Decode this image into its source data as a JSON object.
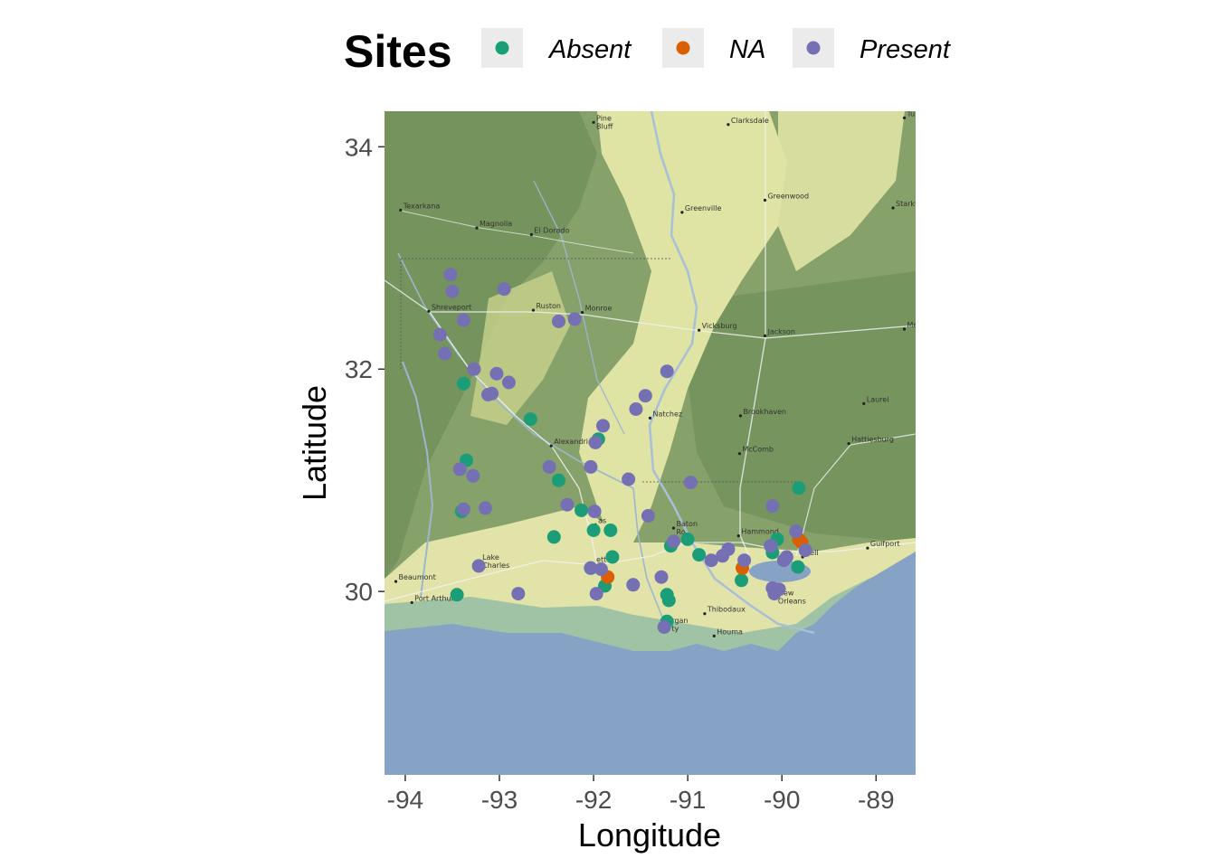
{
  "chart_data": {
    "type": "scatter",
    "xlabel": "Longitude",
    "ylabel": "Latitude",
    "xlim": [
      -94.22,
      -88.58
    ],
    "ylim": [
      28.35,
      34.32
    ],
    "x_ticks": [
      -94,
      -93,
      -92,
      -91,
      -90,
      -89
    ],
    "x_tick_labels": [
      "-94",
      "-93",
      "-92",
      "-91",
      "-90",
      "-89"
    ],
    "y_ticks": [
      30,
      32,
      34
    ],
    "y_tick_labels": [
      "30",
      "32",
      "34"
    ],
    "grid": false,
    "basemap": "terrain",
    "legend": {
      "title": "Sites",
      "position": "top",
      "items": [
        {
          "label": "Absent",
          "color": "#1b9e77"
        },
        {
          "label": "NA",
          "color": "#d95f02"
        },
        {
          "label": "Present",
          "color": "#7570b3"
        }
      ]
    },
    "series": [
      {
        "name": "Absent",
        "color": "#1b9e77",
        "points": [
          [
            -93.38,
            31.87
          ],
          [
            -92.67,
            31.55
          ],
          [
            -93.35,
            31.18
          ],
          [
            -93.4,
            30.72
          ],
          [
            -92.37,
            31.0
          ],
          [
            -92.13,
            30.73
          ],
          [
            -92.42,
            30.49
          ],
          [
            -92.0,
            30.55
          ],
          [
            -91.82,
            30.55
          ],
          [
            -91.8,
            30.31
          ],
          [
            -92.03,
            30.21
          ],
          [
            -91.88,
            30.05
          ],
          [
            -91.95,
            31.37
          ],
          [
            -93.45,
            29.97
          ],
          [
            -91.22,
            29.97
          ],
          [
            -91.2,
            29.92
          ],
          [
            -91.22,
            29.73
          ],
          [
            -91.18,
            30.41
          ],
          [
            -91.0,
            30.47
          ],
          [
            -90.88,
            30.33
          ],
          [
            -90.05,
            30.47
          ],
          [
            -90.1,
            30.35
          ],
          [
            -89.82,
            30.93
          ],
          [
            -89.83,
            30.22
          ],
          [
            -90.43,
            30.1
          ]
        ]
      },
      {
        "name": "NA",
        "color": "#d95f02",
        "points": [
          [
            -91.85,
            30.13
          ],
          [
            -90.42,
            30.21
          ],
          [
            -89.82,
            30.47
          ],
          [
            -89.79,
            30.44
          ]
        ]
      },
      {
        "name": "Present",
        "color": "#7570b3",
        "points": [
          [
            -93.52,
            32.85
          ],
          [
            -93.5,
            32.7
          ],
          [
            -92.95,
            32.72
          ],
          [
            -93.38,
            32.44
          ],
          [
            -92.37,
            32.43
          ],
          [
            -92.2,
            32.45
          ],
          [
            -93.63,
            32.31
          ],
          [
            -93.58,
            32.14
          ],
          [
            -93.27,
            32.0
          ],
          [
            -93.03,
            31.96
          ],
          [
            -92.9,
            31.88
          ],
          [
            -93.12,
            31.77
          ],
          [
            -93.08,
            31.78
          ],
          [
            -91.22,
            31.98
          ],
          [
            -91.45,
            31.76
          ],
          [
            -91.55,
            31.64
          ],
          [
            -91.9,
            31.49
          ],
          [
            -91.98,
            31.34
          ],
          [
            -92.47,
            31.12
          ],
          [
            -92.03,
            31.12
          ],
          [
            -93.42,
            31.1
          ],
          [
            -93.28,
            31.04
          ],
          [
            -91.63,
            31.01
          ],
          [
            -90.97,
            30.98
          ],
          [
            -93.38,
            30.74
          ],
          [
            -93.15,
            30.75
          ],
          [
            -92.28,
            30.78
          ],
          [
            -91.99,
            30.72
          ],
          [
            -91.42,
            30.68
          ],
          [
            -90.1,
            30.77
          ],
          [
            -91.15,
            30.45
          ],
          [
            -90.57,
            30.38
          ],
          [
            -90.63,
            30.32
          ],
          [
            -90.75,
            30.28
          ],
          [
            -90.4,
            30.28
          ],
          [
            -90.12,
            30.41
          ],
          [
            -89.95,
            30.31
          ],
          [
            -89.98,
            30.28
          ],
          [
            -89.85,
            30.54
          ],
          [
            -89.75,
            30.37
          ],
          [
            -93.22,
            30.23
          ],
          [
            -92.03,
            30.21
          ],
          [
            -91.92,
            30.2
          ],
          [
            -91.28,
            30.13
          ],
          [
            -91.58,
            30.06
          ],
          [
            -92.8,
            29.98
          ],
          [
            -91.97,
            29.98
          ],
          [
            -90.1,
            30.03
          ],
          [
            -90.05,
            30.02
          ],
          [
            -90.03,
            30.02
          ],
          [
            -90.08,
            29.98
          ],
          [
            -91.25,
            29.68
          ]
        ]
      }
    ]
  },
  "map_labels": [
    {
      "name": "Pine\nBluff",
      "lon": -92.0,
      "lat": 34.22
    },
    {
      "name": "Clarksdale",
      "lon": -90.57,
      "lat": 34.2
    },
    {
      "name": "Tupelo",
      "lon": -88.7,
      "lat": 34.26
    },
    {
      "name": "Texarkana",
      "lon": -94.05,
      "lat": 33.43
    },
    {
      "name": "Magnolia",
      "lon": -93.24,
      "lat": 33.27
    },
    {
      "name": "El Dorado",
      "lon": -92.66,
      "lat": 33.21
    },
    {
      "name": "Greenville",
      "lon": -91.06,
      "lat": 33.41
    },
    {
      "name": "Greenwood",
      "lon": -90.18,
      "lat": 33.52
    },
    {
      "name": "Starkv",
      "lon": -88.82,
      "lat": 33.45
    },
    {
      "name": "Shreveport",
      "lon": -93.75,
      "lat": 32.52
    },
    {
      "name": "Ruston",
      "lon": -92.64,
      "lat": 32.53
    },
    {
      "name": "Monroe",
      "lon": -92.12,
      "lat": 32.51
    },
    {
      "name": "Vicksburg",
      "lon": -90.88,
      "lat": 32.35
    },
    {
      "name": "Jackson",
      "lon": -90.18,
      "lat": 32.3
    },
    {
      "name": "Me",
      "lon": -88.7,
      "lat": 32.36
    },
    {
      "name": "Natchez",
      "lon": -91.4,
      "lat": 31.56
    },
    {
      "name": "Brookhaven",
      "lon": -90.44,
      "lat": 31.58
    },
    {
      "name": "Laurel",
      "lon": -89.13,
      "lat": 31.69
    },
    {
      "name": "Alexandria",
      "lon": -92.45,
      "lat": 31.31
    },
    {
      "name": "McComb",
      "lon": -90.45,
      "lat": 31.24
    },
    {
      "name": "Hattiesburg",
      "lon": -89.29,
      "lat": 31.33
    },
    {
      "name": "Baton\nRo",
      "lon": -91.15,
      "lat": 30.57
    },
    {
      "name": "Hammond",
      "lon": -90.46,
      "lat": 30.5
    },
    {
      "name": "Gulfport",
      "lon": -89.09,
      "lat": 30.39
    },
    {
      "name": "Lake\nCharles",
      "lon": -93.21,
      "lat": 30.27
    },
    {
      "name": "Beaumont",
      "lon": -94.1,
      "lat": 30.09
    },
    {
      "name": "Port Arthur",
      "lon": -93.93,
      "lat": 29.9
    },
    {
      "name": "Thibodaux",
      "lon": -90.82,
      "lat": 29.8
    },
    {
      "name": "New\nOrleans",
      "lon": -90.07,
      "lat": 29.95
    },
    {
      "name": "Houma",
      "lon": -90.72,
      "lat": 29.6
    },
    {
      "name": "rgan\nty",
      "lon": -91.2,
      "lat": 29.7
    },
    {
      "name": "dell",
      "lon": -89.78,
      "lat": 30.31
    },
    {
      "name": "ette",
      "lon": -92.0,
      "lat": 30.25
    },
    {
      "name": "as",
      "lon": -91.98,
      "lat": 30.6
    }
  ]
}
